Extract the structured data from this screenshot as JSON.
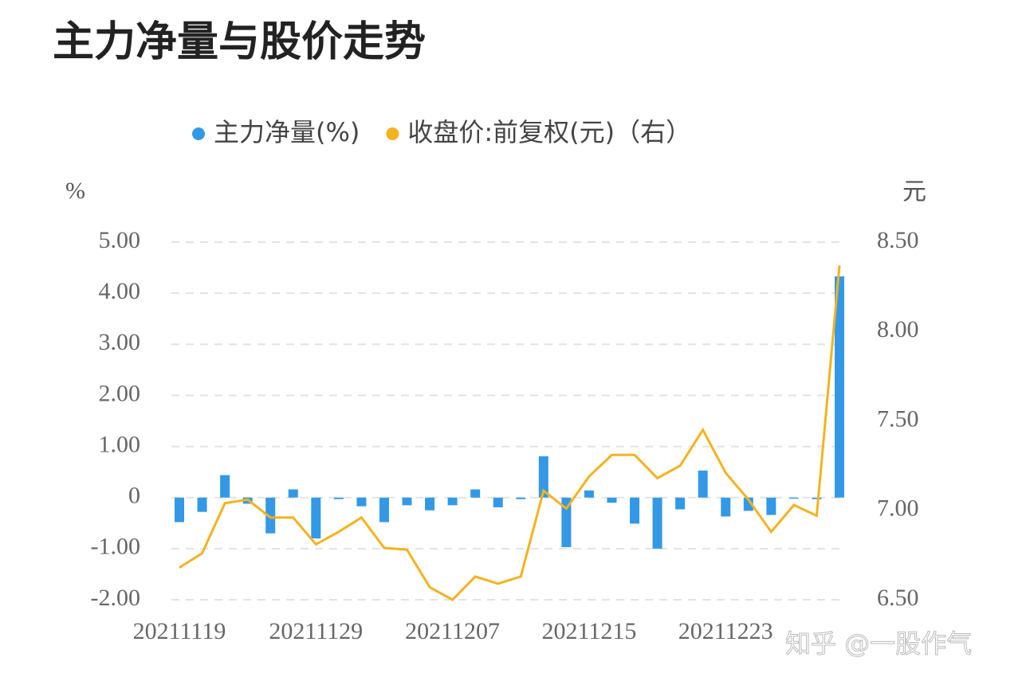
{
  "chart_data": {
    "type": "bar_line",
    "title": "主力净量与股价走势",
    "y_axis_label": "%",
    "y2_axis_label": "元",
    "watermark": "知乎 @一股作气",
    "categories": [
      "20211119",
      null,
      null,
      null,
      null,
      null,
      "20211129",
      null,
      null,
      null,
      null,
      null,
      "20211207",
      null,
      null,
      null,
      null,
      null,
      "20211215",
      null,
      null,
      null,
      null,
      null,
      "20211223",
      null,
      null,
      null,
      null,
      null
    ],
    "series": [
      {
        "name": "主力净量(%)",
        "type": "bar",
        "color": "#3399e6",
        "values": [
          -0.48,
          -0.28,
          0.44,
          -0.12,
          -0.7,
          0.16,
          -0.8,
          -0.03,
          -0.17,
          -0.48,
          -0.15,
          -0.25,
          -0.15,
          0.16,
          -0.19,
          -0.03,
          0.81,
          -0.97,
          0.14,
          -0.1,
          -0.51,
          -1.0,
          -0.23,
          0.53,
          -0.37,
          -0.26,
          -0.34,
          -0.02,
          -0.03,
          4.33
        ]
      },
      {
        "name": "收盘价:前复权(元)（右）",
        "type": "line",
        "axis": "y2",
        "color": "#f5b21f",
        "values": [
          6.68,
          6.76,
          7.04,
          7.06,
          6.96,
          6.96,
          6.81,
          6.88,
          6.96,
          6.79,
          6.78,
          6.57,
          6.5,
          6.63,
          6.59,
          6.63,
          7.11,
          7.01,
          7.19,
          7.31,
          7.31,
          7.18,
          7.25,
          7.45,
          7.21,
          7.06,
          6.88,
          7.03,
          6.97,
          8.37
        ]
      }
    ],
    "ylim": [
      -2,
      5
    ],
    "yticks": [
      {
        "value": -2,
        "label": "-2.00"
      },
      {
        "value": -1,
        "label": "-1.00"
      },
      0,
      {
        "value": 1,
        "label": "1.00"
      },
      {
        "value": 2,
        "label": "2.00"
      },
      {
        "value": 3,
        "label": "3.00"
      },
      {
        "value": 4,
        "label": "4.00"
      },
      {
        "value": 5,
        "label": "5.00"
      }
    ],
    "y2lim": [
      6.5,
      8.5
    ],
    "y2ticks": [
      {
        "value": 6.5,
        "label": "6.50"
      },
      {
        "value": 7,
        "label": "7.00"
      },
      {
        "value": 7.5,
        "label": "7.50"
      },
      {
        "value": 8,
        "label": "8.00"
      },
      {
        "value": 8.5,
        "label": "8.50"
      }
    ],
    "grid": true
  }
}
